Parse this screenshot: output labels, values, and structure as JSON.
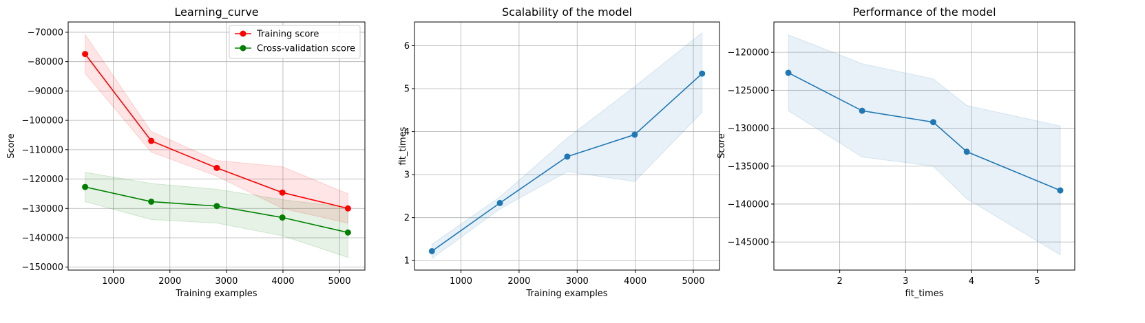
{
  "chart_data": [
    {
      "type": "line",
      "title": "Learning_curve",
      "xlabel": "Training examples",
      "ylabel": "Score",
      "xlim": [
        200,
        5450
      ],
      "ylim": [
        -151000,
        -66500
      ],
      "xticks": [
        1000,
        2000,
        3000,
        4000,
        5000
      ],
      "yticks": [
        -150000,
        -140000,
        -130000,
        -120000,
        -110000,
        -100000,
        -90000,
        -80000,
        -70000
      ],
      "grid": true,
      "legend": "top-right",
      "x": [
        500,
        1670,
        2830,
        3990,
        5150
      ],
      "series": [
        {
          "name": "Training score",
          "color": "#ff0000",
          "values": [
            -77400,
            -107000,
            -116200,
            -124600,
            -130000
          ],
          "band_upper": [
            -70800,
            -103800,
            -113700,
            -115800,
            -125000
          ],
          "band_lower": [
            -84000,
            -110800,
            -119000,
            -130000,
            -135000
          ]
        },
        {
          "name": "Cross-validation score",
          "color": "#008000",
          "values": [
            -122700,
            -127700,
            -129200,
            -133100,
            -138200
          ],
          "band_upper": [
            -117700,
            -121500,
            -123500,
            -127000,
            -129700
          ],
          "band_lower": [
            -127700,
            -133800,
            -135000,
            -139300,
            -146700
          ]
        }
      ]
    },
    {
      "type": "line",
      "title": "Scalability of the model",
      "xlabel": "Training examples",
      "ylabel": "fit_times",
      "xlim": [
        200,
        5450
      ],
      "ylim": [
        0.78,
        6.55
      ],
      "xticks": [
        1000,
        2000,
        3000,
        4000,
        5000
      ],
      "yticks": [
        1,
        2,
        3,
        4,
        5,
        6
      ],
      "grid": true,
      "x": [
        500,
        1670,
        2830,
        3990,
        5150
      ],
      "series": [
        {
          "color": "#1f77b4",
          "values": [
            1.22,
            2.34,
            3.42,
            3.93,
            5.35
          ],
          "band_upper": [
            1.38,
            2.48,
            3.85,
            5.05,
            6.3
          ],
          "band_lower": [
            1.05,
            2.2,
            3.07,
            2.84,
            4.45
          ]
        }
      ]
    },
    {
      "type": "line",
      "title": "Performance of the model",
      "xlabel": "fit_times",
      "ylabel": "Score",
      "xlim": [
        1.0,
        5.57
      ],
      "ylim": [
        -148700,
        -116000
      ],
      "xticks": [
        2,
        3,
        4,
        5
      ],
      "yticks": [
        -145000,
        -140000,
        -135000,
        -130000,
        -125000,
        -120000
      ],
      "grid": true,
      "x": [
        1.22,
        2.34,
        3.42,
        3.93,
        5.35
      ],
      "series": [
        {
          "color": "#1f77b4",
          "values": [
            -122700,
            -127700,
            -129200,
            -133100,
            -138200
          ],
          "band_upper": [
            -117700,
            -121500,
            -123500,
            -127000,
            -129700
          ],
          "band_lower": [
            -127700,
            -133800,
            -135000,
            -139300,
            -146700
          ]
        }
      ]
    }
  ]
}
